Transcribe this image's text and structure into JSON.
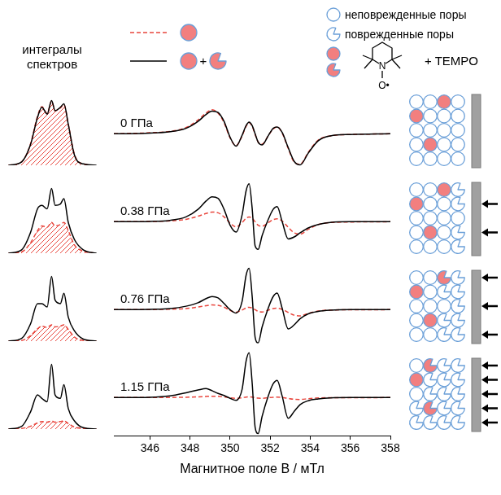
{
  "chart_data": [
    {
      "type": "line",
      "title": "0 ГПа",
      "xlim": [
        344.2,
        358
      ],
      "ylim": [
        -5.5,
        7
      ],
      "tick_labels": false,
      "grid": false,
      "x": [
        344.2,
        346,
        347,
        347.8,
        348.4,
        348.8,
        349.1,
        349.4,
        349.7,
        350.0,
        350.3,
        350.6,
        350.8,
        350.95,
        351.1,
        351.25,
        351.4,
        351.6,
        351.9,
        352.15,
        352.35,
        352.6,
        352.9,
        353.2,
        353.5,
        353.9,
        354.4,
        355,
        356,
        358
      ],
      "series": [
        {
          "type": "line",
          "color": "#000000",
          "line_style": "solid",
          "values": [
            0,
            0.1,
            0.3,
            0.8,
            1.8,
            2.8,
            3.3,
            3.1,
            1.8,
            -0.5,
            -1.8,
            -0.2,
            1.2,
            1.7,
            1.2,
            0,
            -1.2,
            -1.6,
            -0.3,
            0.8,
            1.0,
            0.2,
            -2.0,
            -4.0,
            -4.5,
            -2.8,
            -1.0,
            -0.3,
            -0.1,
            0
          ]
        },
        {
          "type": "line",
          "color": "#e8453c",
          "line_style": "dashed",
          "values": [
            0,
            0.15,
            0.35,
            0.9,
            2.0,
            3.0,
            3.5,
            3.0,
            1.6,
            -0.6,
            -1.7,
            -0.3,
            1.1,
            1.6,
            1.1,
            -0.1,
            -1.2,
            -1.5,
            -0.3,
            0.7,
            1.0,
            0.1,
            -2.1,
            -4.1,
            -4.4,
            -2.7,
            -0.9,
            -0.3,
            -0.1,
            0
          ]
        }
      ]
    },
    {
      "type": "line",
      "title": "0.38 ГПа",
      "xlim": [
        344.2,
        358
      ],
      "ylim": [
        -5.5,
        7
      ],
      "tick_labels": false,
      "grid": false,
      "x": [
        344.2,
        346,
        347,
        347.8,
        348.4,
        348.8,
        349.1,
        349.4,
        349.7,
        350.0,
        350.3,
        350.6,
        350.8,
        350.95,
        351.1,
        351.25,
        351.4,
        351.6,
        351.9,
        352.15,
        352.35,
        352.6,
        352.9,
        353.2,
        353.5,
        353.9,
        354.4,
        355,
        356,
        358
      ],
      "series": [
        {
          "type": "line",
          "color": "#000000",
          "line_style": "solid",
          "values": [
            0,
            0.05,
            0.2,
            0.7,
            1.8,
            3.0,
            3.6,
            3.4,
            1.8,
            -0.5,
            -1.5,
            1.0,
            4.5,
            5.5,
            2.0,
            -3.5,
            -4.0,
            -2.0,
            0.3,
            1.8,
            2.2,
            0,
            -2.5,
            -2.2,
            -1.6,
            -0.9,
            -0.4,
            -0.1,
            0,
            0
          ]
        },
        {
          "type": "line",
          "color": "#e8453c",
          "line_style": "dashed",
          "values": [
            0,
            0.04,
            0.12,
            0.35,
            0.8,
            1.2,
            1.4,
            1.3,
            0.7,
            -0.2,
            -0.75,
            -0.1,
            0.5,
            0.7,
            0.5,
            0,
            -0.5,
            -0.65,
            -0.15,
            0.3,
            0.42,
            0.1,
            -0.8,
            -1.6,
            -1.8,
            -1.1,
            -0.4,
            -0.12,
            -0.04,
            0
          ]
        }
      ]
    },
    {
      "type": "line",
      "title": "0.76 ГПа",
      "xlim": [
        344.2,
        358
      ],
      "ylim": [
        -5.5,
        7
      ],
      "tick_labels": false,
      "grid": false,
      "x": [
        344.2,
        346,
        347,
        347.8,
        348.4,
        348.8,
        349.1,
        349.4,
        349.7,
        350.0,
        350.3,
        350.6,
        350.8,
        350.95,
        351.1,
        351.25,
        351.4,
        351.6,
        351.9,
        352.15,
        352.35,
        352.6,
        352.9,
        353.2,
        353.5,
        353.9,
        354.4,
        355,
        356,
        358
      ],
      "series": [
        {
          "type": "line",
          "color": "#000000",
          "line_style": "solid",
          "values": [
            0,
            0.05,
            0.15,
            0.5,
            1.0,
            1.6,
            1.9,
            1.7,
            0.9,
            0.0,
            -0.5,
            1.2,
            5.0,
            6.0,
            2.0,
            -4.0,
            -4.8,
            -2.5,
            0.2,
            1.9,
            2.4,
            0.2,
            -2.8,
            -2.2,
            -1.3,
            -0.6,
            -0.25,
            -0.08,
            0,
            0
          ]
        },
        {
          "type": "line",
          "color": "#e8453c",
          "line_style": "dashed",
          "values": [
            0,
            0.02,
            0.06,
            0.17,
            0.38,
            0.58,
            0.68,
            0.63,
            0.36,
            -0.1,
            -0.37,
            -0.05,
            0.25,
            0.35,
            0.25,
            0,
            -0.25,
            -0.33,
            -0.07,
            0.15,
            0.21,
            0.05,
            -0.4,
            -0.8,
            -0.9,
            -0.55,
            -0.2,
            -0.06,
            -0.02,
            0
          ]
        }
      ]
    },
    {
      "type": "line",
      "title": "1.15 ГПа",
      "xlim": [
        344.2,
        358
      ],
      "ylim": [
        -5.5,
        7
      ],
      "tick_labels": "x",
      "grid": false,
      "x_label": "Магнитное поле B / мТл",
      "xticks": [
        346,
        348,
        350,
        352,
        354,
        356,
        358
      ],
      "x": [
        344.2,
        346,
        347,
        347.8,
        348.4,
        348.8,
        349.1,
        349.4,
        349.7,
        350.0,
        350.3,
        350.6,
        350.8,
        350.95,
        351.1,
        351.25,
        351.4,
        351.6,
        351.9,
        352.15,
        352.35,
        352.6,
        352.9,
        353.2,
        353.5,
        353.9,
        354.4,
        355,
        356,
        358
      ],
      "series": [
        {
          "type": "line",
          "color": "#000000",
          "line_style": "solid",
          "values": [
            0,
            0.05,
            0.25,
            0.7,
            1.1,
            1.3,
            1.0,
            0.6,
            0.3,
            -0.1,
            -0.4,
            1.2,
            5.3,
            6.5,
            2.2,
            -4.3,
            -5.2,
            -2.7,
            0.2,
            2.0,
            2.5,
            0.2,
            -3.0,
            -2.0,
            -1.0,
            -0.45,
            -0.2,
            -0.05,
            0,
            0
          ]
        },
        {
          "type": "line",
          "color": "#e8453c",
          "line_style": "dashed",
          "values": [
            0,
            0.01,
            0.02,
            0.05,
            0.11,
            0.17,
            0.2,
            0.19,
            0.11,
            -0.03,
            -0.11,
            -0.02,
            0.08,
            0.1,
            0.08,
            0,
            -0.08,
            -0.1,
            -0.02,
            0.05,
            0.06,
            0.02,
            -0.12,
            -0.24,
            -0.27,
            -0.16,
            -0.06,
            -0.02,
            -0.01,
            0
          ]
        }
      ]
    },
    {
      "type": "line",
      "title": "интегралы спектров",
      "xlim": [
        345.5,
        356.5
      ],
      "ylim": [
        0,
        1.05
      ],
      "tick_labels": false,
      "grid": false,
      "x": [
        346,
        347.5,
        348.5,
        349.3,
        349.8,
        350.4,
        350.9,
        351.3,
        351.9,
        352.3,
        352.8,
        353.5,
        354.5,
        356
      ],
      "series": [
        {
          "type": "area",
          "color": "#e8453c",
          "line_style": "dashed",
          "values": [
            0,
            0.05,
            0.31,
            0.72,
            0.86,
            0.76,
            0.94,
            0.8,
            0.84,
            0.89,
            0.6,
            0.16,
            0.02,
            0
          ]
        },
        {
          "type": "line",
          "color": "#000000",
          "line_style": "solid",
          "values": [
            0,
            0.05,
            0.3,
            0.7,
            0.85,
            0.75,
            0.95,
            0.8,
            0.85,
            0.9,
            0.6,
            0.15,
            0.02,
            0
          ]
        }
      ]
    },
    {
      "type": "line",
      "xlim": [
        345.5,
        356.5
      ],
      "ylim": [
        0,
        1.05
      ],
      "tick_labels": false,
      "grid": false,
      "x": [
        346,
        347.5,
        348.5,
        349.3,
        349.8,
        350.4,
        350.9,
        351.3,
        351.9,
        352.3,
        352.8,
        353.5,
        354.5,
        356
      ],
      "series": [
        {
          "type": "area",
          "color": "#e8453c",
          "line_style": "dashed",
          "values": [
            0,
            0.02,
            0.15,
            0.33,
            0.4,
            0.38,
            0.45,
            0.4,
            0.42,
            0.45,
            0.33,
            0.12,
            0.03,
            0
          ]
        },
        {
          "type": "line",
          "color": "#000000",
          "line_style": "solid",
          "values": [
            0,
            0.05,
            0.3,
            0.65,
            0.7,
            0.65,
            0.95,
            0.7,
            0.72,
            0.8,
            0.45,
            0.2,
            0.05,
            0
          ]
        }
      ]
    },
    {
      "type": "line",
      "xlim": [
        345.5,
        356.5
      ],
      "ylim": [
        0,
        1.05
      ],
      "tick_labels": false,
      "grid": false,
      "x": [
        346,
        347.5,
        348.5,
        349.3,
        349.8,
        350.4,
        350.9,
        351.3,
        351.9,
        352.3,
        352.8,
        353.5,
        354.5,
        356
      ],
      "series": [
        {
          "type": "area",
          "color": "#e8453c",
          "line_style": "dashed",
          "values": [
            0,
            0.01,
            0.08,
            0.18,
            0.22,
            0.2,
            0.24,
            0.21,
            0.22,
            0.24,
            0.17,
            0.06,
            0.01,
            0
          ]
        },
        {
          "type": "line",
          "color": "#000000",
          "line_style": "solid",
          "values": [
            0,
            0.04,
            0.25,
            0.55,
            0.55,
            0.5,
            0.95,
            0.6,
            0.55,
            0.7,
            0.35,
            0.15,
            0.03,
            0
          ]
        }
      ]
    },
    {
      "type": "line",
      "xlim": [
        345.5,
        356.5
      ],
      "ylim": [
        0,
        1.05
      ],
      "tick_labels": false,
      "grid": false,
      "x": [
        346,
        347.5,
        348.5,
        349.3,
        349.8,
        350.4,
        350.9,
        351.3,
        351.9,
        352.3,
        352.8,
        353.5,
        354.5,
        356
      ],
      "series": [
        {
          "type": "area",
          "color": "#e8453c",
          "line_style": "dashed",
          "values": [
            0,
            0.01,
            0.04,
            0.09,
            0.11,
            0.1,
            0.12,
            0.1,
            0.11,
            0.12,
            0.08,
            0.03,
            0.01,
            0
          ]
        },
        {
          "type": "line",
          "color": "#000000",
          "line_style": "solid",
          "values": [
            0,
            0.04,
            0.25,
            0.5,
            0.45,
            0.4,
            0.95,
            0.5,
            0.45,
            0.65,
            0.3,
            0.12,
            0.02,
            0
          ]
        }
      ]
    }
  ],
  "legend_key": {
    "intact": "неповрежденные поры",
    "damaged": "поврежденные поры",
    "plus": "+",
    "probe": "+ TEMPO",
    "nitrogen": "N",
    "oxygen": "O•"
  }
}
